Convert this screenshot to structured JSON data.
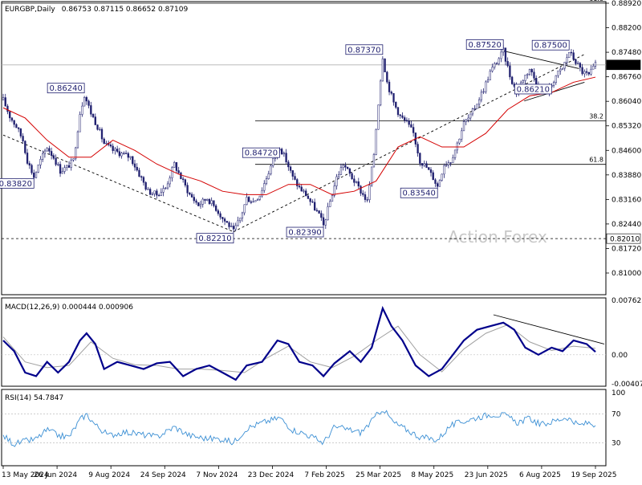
{
  "header": {
    "symbol": "EURGBP,Daily",
    "ohlc": "0.86753 0.87115 0.86652 0.87109",
    "macd_title": "MACD(12,26,9) 0.000444 0.000906",
    "rsi_title": "RSI(14) 54.7847",
    "watermark": "Action Forex"
  },
  "colors": {
    "candles": "#1e1e6e",
    "ma": "#d40000",
    "macd_line": "#00008b",
    "signal_line": "#a0a0a0",
    "rsi_line": "#3b8fd4",
    "label_border": "#1e1e6e",
    "current_price_bg": "#000000"
  },
  "chart_data": [
    {
      "type": "candlestick",
      "name": "price",
      "ylim": [
        0.81,
        0.8892
      ],
      "y_ticks": [
        "0.88920",
        "0.88200",
        "0.87480",
        "0.86760",
        "0.86040",
        "0.85320",
        "0.84600",
        "0.83880",
        "0.83160",
        "0.82440",
        "0.81720",
        "0.81000"
      ],
      "x_ticks": [
        "13 May 2024",
        "26 Jun 2024",
        "9 Aug 2024",
        "24 Sep 2024",
        "7 Nov 2024",
        "23 Dec 2024",
        "7 Feb 2025",
        "25 Mar 2025",
        "8 May 2025",
        "23 Jun 2025",
        "6 Aug 2025",
        "19 Sep 2025"
      ],
      "close_path": [
        [
          0,
          0.8608
        ],
        [
          6,
          0.856
        ],
        [
          12,
          0.853
        ],
        [
          18,
          0.849
        ],
        [
          22,
          0.843
        ],
        [
          28,
          0.8382
        ],
        [
          34,
          0.843
        ],
        [
          40,
          0.847
        ],
        [
          46,
          0.844
        ],
        [
          52,
          0.84
        ],
        [
          58,
          0.841
        ],
        [
          64,
          0.843
        ],
        [
          70,
          0.857
        ],
        [
          74,
          0.8624
        ],
        [
          80,
          0.857
        ],
        [
          86,
          0.853
        ],
        [
          92,
          0.848
        ],
        [
          100,
          0.846
        ],
        [
          108,
          0.845
        ],
        [
          116,
          0.844
        ],
        [
          124,
          0.839
        ],
        [
          132,
          0.834
        ],
        [
          140,
          0.833
        ],
        [
          148,
          0.835
        ],
        [
          156,
          0.842
        ],
        [
          162,
          0.838
        ],
        [
          170,
          0.833
        ],
        [
          178,
          0.83
        ],
        [
          186,
          0.832
        ],
        [
          194,
          0.829
        ],
        [
          200,
          0.826
        ],
        [
          206,
          0.824
        ],
        [
          210,
          0.8221
        ],
        [
          216,
          0.826
        ],
        [
          222,
          0.832
        ],
        [
          228,
          0.831
        ],
        [
          234,
          0.833
        ],
        [
          240,
          0.838
        ],
        [
          246,
          0.843
        ],
        [
          252,
          0.8472
        ],
        [
          258,
          0.843
        ],
        [
          264,
          0.838
        ],
        [
          270,
          0.835
        ],
        [
          276,
          0.833
        ],
        [
          282,
          0.83
        ],
        [
          288,
          0.827
        ],
        [
          292,
          0.8239
        ],
        [
          298,
          0.831
        ],
        [
          304,
          0.838
        ],
        [
          310,
          0.842
        ],
        [
          316,
          0.839
        ],
        [
          322,
          0.836
        ],
        [
          328,
          0.833
        ],
        [
          332,
          0.831
        ],
        [
          338,
          0.845
        ],
        [
          342,
          0.86
        ],
        [
          346,
          0.8737
        ],
        [
          350,
          0.866
        ],
        [
          356,
          0.86
        ],
        [
          362,
          0.856
        ],
        [
          368,
          0.854
        ],
        [
          374,
          0.851
        ],
        [
          380,
          0.843
        ],
        [
          386,
          0.841
        ],
        [
          392,
          0.838
        ],
        [
          396,
          0.8354
        ],
        [
          402,
          0.842
        ],
        [
          408,
          0.843
        ],
        [
          414,
          0.848
        ],
        [
          420,
          0.854
        ],
        [
          426,
          0.856
        ],
        [
          432,
          0.86
        ],
        [
          438,
          0.864
        ],
        [
          444,
          0.869
        ],
        [
          450,
          0.872
        ],
        [
          456,
          0.8752
        ],
        [
          462,
          0.868
        ],
        [
          468,
          0.863
        ],
        [
          474,
          0.867
        ],
        [
          480,
          0.87
        ],
        [
          486,
          0.866
        ],
        [
          492,
          0.863
        ],
        [
          498,
          0.864
        ],
        [
          504,
          0.868
        ],
        [
          510,
          0.87
        ],
        [
          516,
          0.875
        ],
        [
          522,
          0.872
        ],
        [
          528,
          0.869
        ],
        [
          534,
          0.868
        ],
        [
          540,
          0.8711
        ]
      ],
      "moving_average": [
        [
          0,
          0.8585
        ],
        [
          20,
          0.8555
        ],
        [
          40,
          0.849
        ],
        [
          60,
          0.844
        ],
        [
          80,
          0.844
        ],
        [
          100,
          0.849
        ],
        [
          120,
          0.846
        ],
        [
          140,
          0.842
        ],
        [
          160,
          0.839
        ],
        [
          180,
          0.837
        ],
        [
          200,
          0.834
        ],
        [
          220,
          0.833
        ],
        [
          240,
          0.833
        ],
        [
          260,
          0.836
        ],
        [
          280,
          0.836
        ],
        [
          300,
          0.833
        ],
        [
          320,
          0.834
        ],
        [
          340,
          0.837
        ],
        [
          360,
          0.847
        ],
        [
          380,
          0.85
        ],
        [
          400,
          0.847
        ],
        [
          420,
          0.847
        ],
        [
          440,
          0.851
        ],
        [
          460,
          0.858
        ],
        [
          480,
          0.862
        ],
        [
          500,
          0.863
        ],
        [
          520,
          0.866
        ],
        [
          540,
          0.8675
        ]
      ],
      "horizontal_lines": [
        {
          "value": 0.8892,
          "label": "61.8",
          "style": "solid"
        },
        {
          "value": 0.8711,
          "label": "",
          "style": "solid-gray"
        },
        {
          "value": 0.8547,
          "label": "38.2",
          "style": "solid"
        },
        {
          "value": 0.8419,
          "label": "61.8",
          "style": "solid"
        },
        {
          "value": 0.8201,
          "label": "",
          "style": "dashed"
        }
      ],
      "price_labels": [
        {
          "text": "0.86240",
          "x": 74,
          "value": 0.8624
        },
        {
          "text": "0.83820",
          "x": 28,
          "value": 0.8382
        },
        {
          "text": "0.82210",
          "x": 210,
          "value": 0.8221
        },
        {
          "text": "0.84720",
          "x": 252,
          "value": 0.8472
        },
        {
          "text": "0.82390",
          "x": 292,
          "value": 0.8239
        },
        {
          "text": "0.87370",
          "x": 346,
          "value": 0.8737
        },
        {
          "text": "0.83540",
          "x": 396,
          "value": 0.8354
        },
        {
          "text": "0.87520",
          "x": 456,
          "value": 0.8752
        },
        {
          "text": "0.87500",
          "x": 516,
          "value": 0.875
        },
        {
          "text": "0.86210",
          "x": 500,
          "value": 0.8621
        }
      ],
      "axis_tags": [
        {
          "text": "0.87109",
          "value": 0.8711,
          "style": "dark"
        },
        {
          "text": "0.82010",
          "value": 0.8201,
          "style": "light"
        }
      ],
      "trendlines": [
        {
          "from": [
            0,
            0.8505
          ],
          "to": [
            210,
            0.8221
          ],
          "style": "dashed"
        },
        {
          "from": [
            210,
            0.8221
          ],
          "to": [
            530,
            0.8742
          ],
          "style": "dashed"
        },
        {
          "from": [
            456,
            0.8752
          ],
          "to": [
            525,
            0.87
          ],
          "style": "solid"
        },
        {
          "from": [
            475,
            0.8605
          ],
          "to": [
            530,
            0.866
          ],
          "style": "solid"
        }
      ]
    },
    {
      "type": "line",
      "name": "MACD",
      "ylim": [
        -0.004073,
        0.007623
      ],
      "y_ticks": [
        "0.007623",
        "0.00",
        "-0.004073"
      ],
      "macd": [
        [
          0,
          0.002
        ],
        [
          10,
          0.0005
        ],
        [
          20,
          -0.0025
        ],
        [
          30,
          -0.003
        ],
        [
          40,
          -0.001
        ],
        [
          50,
          -0.0025
        ],
        [
          60,
          -0.001
        ],
        [
          70,
          0.002
        ],
        [
          76,
          0.003
        ],
        [
          84,
          0.0015
        ],
        [
          92,
          -0.002
        ],
        [
          104,
          -0.001
        ],
        [
          116,
          -0.0015
        ],
        [
          128,
          -0.002
        ],
        [
          140,
          -0.0012
        ],
        [
          152,
          -0.001
        ],
        [
          164,
          -0.003
        ],
        [
          176,
          -0.002
        ],
        [
          188,
          -0.0015
        ],
        [
          200,
          -0.0025
        ],
        [
          212,
          -0.0035
        ],
        [
          222,
          -0.0015
        ],
        [
          236,
          -0.001
        ],
        [
          250,
          0.002
        ],
        [
          260,
          0.0015
        ],
        [
          270,
          -0.001
        ],
        [
          282,
          -0.0015
        ],
        [
          292,
          -0.003
        ],
        [
          302,
          -0.0012
        ],
        [
          316,
          0.0005
        ],
        [
          326,
          -0.001
        ],
        [
          336,
          0.001
        ],
        [
          346,
          0.0065
        ],
        [
          354,
          0.004
        ],
        [
          364,
          0.002
        ],
        [
          376,
          -0.0015
        ],
        [
          388,
          -0.003
        ],
        [
          400,
          -0.002
        ],
        [
          410,
          0.0
        ],
        [
          420,
          0.002
        ],
        [
          432,
          0.0035
        ],
        [
          444,
          0.004
        ],
        [
          456,
          0.0045
        ],
        [
          466,
          0.0035
        ],
        [
          476,
          0.001
        ],
        [
          488,
          0.0
        ],
        [
          500,
          0.001
        ],
        [
          510,
          0.0005
        ],
        [
          520,
          0.002
        ],
        [
          532,
          0.0015
        ],
        [
          540,
          0.0004
        ]
      ],
      "signal": [
        [
          0,
          0.0025
        ],
        [
          20,
          -0.001
        ],
        [
          40,
          -0.0018
        ],
        [
          60,
          -0.0015
        ],
        [
          80,
          0.0018
        ],
        [
          100,
          -0.0005
        ],
        [
          120,
          -0.0014
        ],
        [
          140,
          -0.0015
        ],
        [
          160,
          -0.002
        ],
        [
          180,
          -0.002
        ],
        [
          200,
          -0.0022
        ],
        [
          220,
          -0.0025
        ],
        [
          240,
          -0.0005
        ],
        [
          260,
          0.0012
        ],
        [
          280,
          -0.001
        ],
        [
          300,
          -0.0018
        ],
        [
          320,
          -0.0002
        ],
        [
          340,
          0.002
        ],
        [
          360,
          0.004
        ],
        [
          380,
          0.0
        ],
        [
          400,
          -0.0024
        ],
        [
          420,
          0.0008
        ],
        [
          440,
          0.003
        ],
        [
          460,
          0.0042
        ],
        [
          480,
          0.0018
        ],
        [
          500,
          0.0006
        ],
        [
          520,
          0.0012
        ],
        [
          540,
          0.0009
        ]
      ],
      "trendline": {
        "from": [
          447,
          0.0056
        ],
        "to": [
          548,
          0.0015
        ]
      }
    },
    {
      "type": "line",
      "name": "RSI",
      "ylim": [
        0,
        100
      ],
      "y_ticks": [
        "100",
        "70",
        "30",
        "0"
      ],
      "rsi": [
        [
          0,
          40
        ],
        [
          10,
          28
        ],
        [
          20,
          32
        ],
        [
          30,
          35
        ],
        [
          40,
          48
        ],
        [
          50,
          40
        ],
        [
          60,
          38
        ],
        [
          70,
          62
        ],
        [
          76,
          70
        ],
        [
          84,
          55
        ],
        [
          96,
          40
        ],
        [
          110,
          45
        ],
        [
          124,
          42
        ],
        [
          140,
          38
        ],
        [
          156,
          52
        ],
        [
          170,
          40
        ],
        [
          184,
          36
        ],
        [
          200,
          35
        ],
        [
          210,
          30
        ],
        [
          222,
          50
        ],
        [
          236,
          58
        ],
        [
          252,
          65
        ],
        [
          264,
          48
        ],
        [
          276,
          42
        ],
        [
          292,
          30
        ],
        [
          302,
          52
        ],
        [
          316,
          48
        ],
        [
          326,
          44
        ],
        [
          336,
          60
        ],
        [
          346,
          78
        ],
        [
          356,
          58
        ],
        [
          368,
          48
        ],
        [
          380,
          38
        ],
        [
          396,
          34
        ],
        [
          408,
          54
        ],
        [
          420,
          60
        ],
        [
          434,
          66
        ],
        [
          446,
          70
        ],
        [
          458,
          68
        ],
        [
          468,
          58
        ],
        [
          480,
          64
        ],
        [
          490,
          55
        ],
        [
          502,
          60
        ],
        [
          514,
          66
        ],
        [
          524,
          54
        ],
        [
          534,
          58
        ],
        [
          540,
          55
        ]
      ]
    }
  ]
}
